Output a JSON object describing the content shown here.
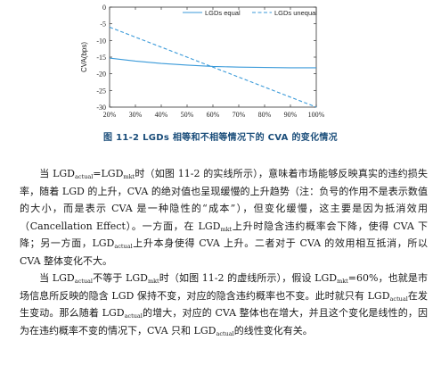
{
  "figure": {
    "caption": "图 11-2  LGDs 相等和不相等情况下的 CVA 的变化情况",
    "chart_data": {
      "type": "line",
      "ylabel": "CVA(bps)",
      "xlabel": "",
      "x": [
        "20%",
        "30%",
        "40%",
        "50%",
        "60%",
        "70%",
        "80%",
        "90%",
        "100%"
      ],
      "x_values": [
        20,
        30,
        40,
        50,
        60,
        70,
        80,
        90,
        100
      ],
      "yticks": [
        "0",
        "-5",
        "-10",
        "-15",
        "-20",
        "-25",
        "-30"
      ],
      "ylim": [
        -30,
        0
      ],
      "xlim": [
        20,
        100
      ],
      "legend_position": "top-right",
      "series": [
        {
          "name": "LGDs equal",
          "style": "solid",
          "color": "#3a9ad9",
          "values": [
            -15.3,
            -16.2,
            -16.9,
            -17.4,
            -17.8,
            -18.0,
            -18.1,
            -18.2,
            -18.2
          ]
        },
        {
          "name": "LGDs unequal",
          "style": "dashed",
          "color": "#3a9ad9",
          "values": [
            -6.0,
            -9.0,
            -12.0,
            -15.0,
            -18.0,
            -21.0,
            -24.0,
            -27.0,
            -30.0
          ]
        }
      ]
    }
  },
  "paragraphs": [
    [
      {
        "t": "当 LGD"
      },
      {
        "s": "actual"
      },
      {
        "t": "=LGD"
      },
      {
        "s": "mkt"
      },
      {
        "t": "时（如图 11-2 的实线所示），意味着市场能够反映真实的违约损失率，随着 LGD 的上升，CVA 的绝对值也呈现缓慢的上升趋势（注：负号的作用不是表示数值的大小，而是表示 CVA 是一种隐性的“成本”），但变化缓慢，这主要是因为抵消效用（Cancellation Effect）。一方面，在 LGD"
      },
      {
        "s": "mkt"
      },
      {
        "t": "上升时隐含违约概率会下降，使得 CVA 下降；另一方面，LGD"
      },
      {
        "s": "actual"
      },
      {
        "t": "上升本身使得 CVA 上升。二者对于 CVA 的效用相互抵消，所以 CVA 整体变化不大。"
      }
    ],
    [
      {
        "t": "当 LGD"
      },
      {
        "s": "actual"
      },
      {
        "t": "不等于 LGD"
      },
      {
        "s": "mkt"
      },
      {
        "t": "时（如图 11-2 的虚线所示），假设 LGD"
      },
      {
        "s": "mkt"
      },
      {
        "t": "=60%，也就是市场信息所反映的隐含 LGD 保持不变，对应的隐含违约概率也不变。此时就只有 LGD"
      },
      {
        "s": "actual"
      },
      {
        "t": "在发生变动。那么随着 LGD"
      },
      {
        "s": "actual"
      },
      {
        "t": "的增大，对应的 CVA 整体也在增大，并且这个变化是线性的，因为在违约概率不变的情况下，CVA 只和 LGD"
      },
      {
        "s": "actual"
      },
      {
        "t": "的线性变化有关。"
      }
    ]
  ]
}
